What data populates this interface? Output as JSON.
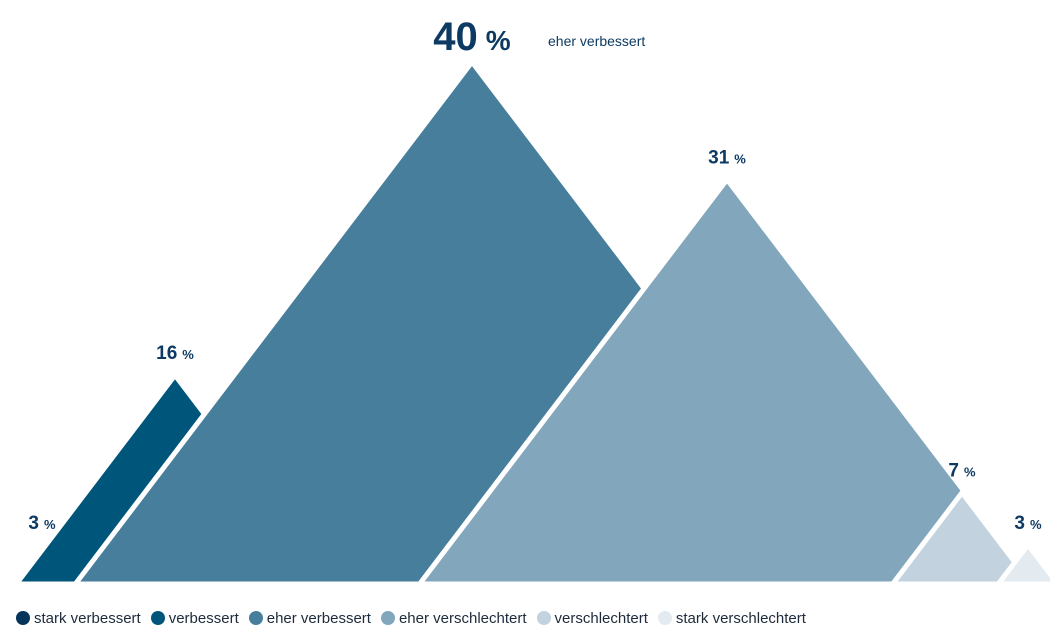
{
  "chart_data": {
    "type": "bar",
    "title": "",
    "xlabel": "",
    "ylabel": "",
    "ylim": [
      0,
      40
    ],
    "categories": [
      "stark verbessert",
      "verbessert",
      "eher verbessert",
      "eher verschlechtert",
      "verschlechtert",
      "stark verschlechtert"
    ],
    "values": [
      3,
      16,
      40,
      31,
      7,
      3
    ],
    "value_labels": [
      "3",
      "16",
      "40",
      "31",
      "7",
      "3"
    ],
    "unit": "%",
    "highlight_label": "eher verbessert",
    "colors": [
      "#06355c",
      "#00557a",
      "#467e9b",
      "#82a6bb",
      "#c2d3df",
      "#e3ebf1"
    ],
    "legend_position": "bottom-left",
    "grid": false
  }
}
